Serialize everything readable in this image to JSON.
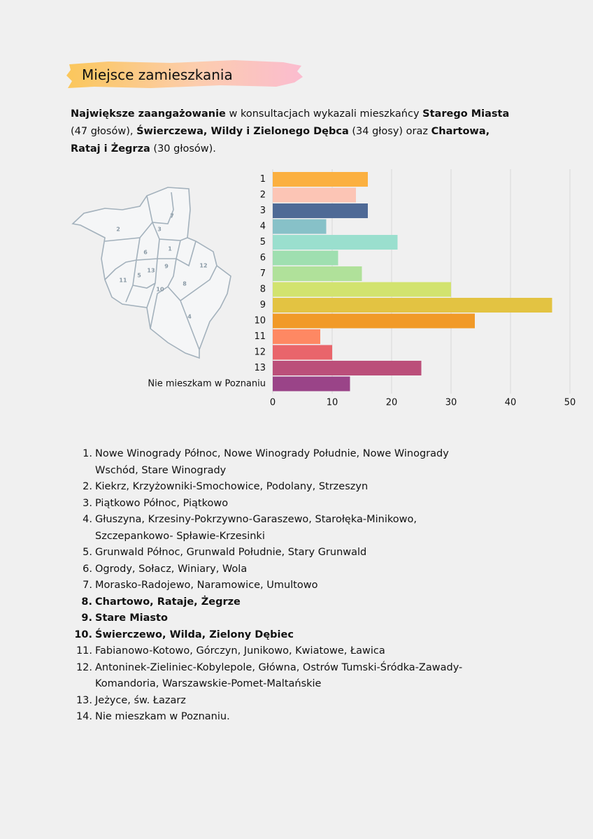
{
  "heading": "Miejsce zamieszkania",
  "intro": [
    {
      "text": "Największe zaangażowanie",
      "bold": true
    },
    {
      "text": " w konsultacjach wykazali mieszkańcy ",
      "bold": false
    },
    {
      "text": "Starego Miasta",
      "bold": true
    },
    {
      "text": " (47 głosów), ",
      "bold": false
    },
    {
      "text": "Świerczewa, Wildy i Zielonego Dębca",
      "bold": true
    },
    {
      "text": " (34 głosy) oraz ",
      "bold": false
    },
    {
      "text": "Chartowa, Rataj i Żegrza",
      "bold": true
    },
    {
      "text": " (30 głosów).",
      "bold": false
    }
  ],
  "map": {
    "labels": [
      "1",
      "2",
      "3",
      "4",
      "5",
      "6",
      "7",
      "8",
      "9",
      "10",
      "11",
      "12",
      "13"
    ]
  },
  "chart_data": {
    "type": "bar",
    "orientation": "horizontal",
    "categories": [
      "1",
      "2",
      "3",
      "4",
      "5",
      "6",
      "7",
      "8",
      "9",
      "10",
      "11",
      "12",
      "13",
      "Nie mieszkam w Poznaniu"
    ],
    "values": [
      16,
      14,
      16,
      9,
      21,
      11,
      15,
      30,
      47,
      34,
      8,
      10,
      25,
      13
    ],
    "colors": [
      "#fbb040",
      "#fcc5b5",
      "#4f6a96",
      "#87c1c8",
      "#9adfce",
      "#9fdfb0",
      "#b0e19a",
      "#d2e36f",
      "#e3c342",
      "#f19a28",
      "#fe8863",
      "#e9656b",
      "#bb4f7a",
      "#9a4488"
    ],
    "xlim": [
      0,
      50
    ],
    "xticks": [
      0,
      10,
      20,
      30,
      40,
      50
    ],
    "grid": true
  },
  "list": [
    {
      "number": "1.",
      "text": "Nowe Winogrady Północ, Nowe Winogrady Południe, Nowe Winogrady Wschód, Stare Winogrady",
      "bold": false
    },
    {
      "number": "2.",
      "text": "Kiekrz, Krzyżowniki-Smochowice, Podolany, Strzeszyn",
      "bold": false
    },
    {
      "number": "3.",
      "text": "Piątkowo Północ, Piątkowo",
      "bold": false
    },
    {
      "number": "4.",
      "text": "Głuszyna, Krzesiny-Pokrzywno-Garaszewo, Starołęka-Minikowo, Szczepankowo- Spławie-Krzesinki",
      "bold": false
    },
    {
      "number": "5.",
      "text": "Grunwald Północ, Grunwald Południe, Stary Grunwald",
      "bold": false
    },
    {
      "number": "6.",
      "text": "Ogrody, Sołacz, Winiary, Wola",
      "bold": false
    },
    {
      "number": "7.",
      "text": "Morasko-Radojewo, Naramowice, Umultowo",
      "bold": false
    },
    {
      "number": "8.",
      "text": "Chartowo, Rataje, Żegrze",
      "bold": true
    },
    {
      "number": "9.",
      "text": "Stare Miasto",
      "bold": true
    },
    {
      "number": "10.",
      "text": "Świerczewo, Wilda, Zielony Dębiec",
      "bold": true
    },
    {
      "number": "11.",
      "text": "Fabianowo-Kotowo, Górczyn, Junikowo, Kwiatowe, Ławica",
      "bold": false
    },
    {
      "number": "12.",
      "text": "Antoninek-Zieliniec-Kobylepole, Główna, Ostrów Tumski-Śródka-Zawady-Komandoria, Warszawskie-Pomet-Maltańskie",
      "bold": false
    },
    {
      "number": "13.",
      "text": "Jeżyce, św. Łazarz",
      "bold": false
    },
    {
      "number": "14.",
      "text": "Nie mieszkam w Poznaniu.",
      "bold": false
    }
  ]
}
